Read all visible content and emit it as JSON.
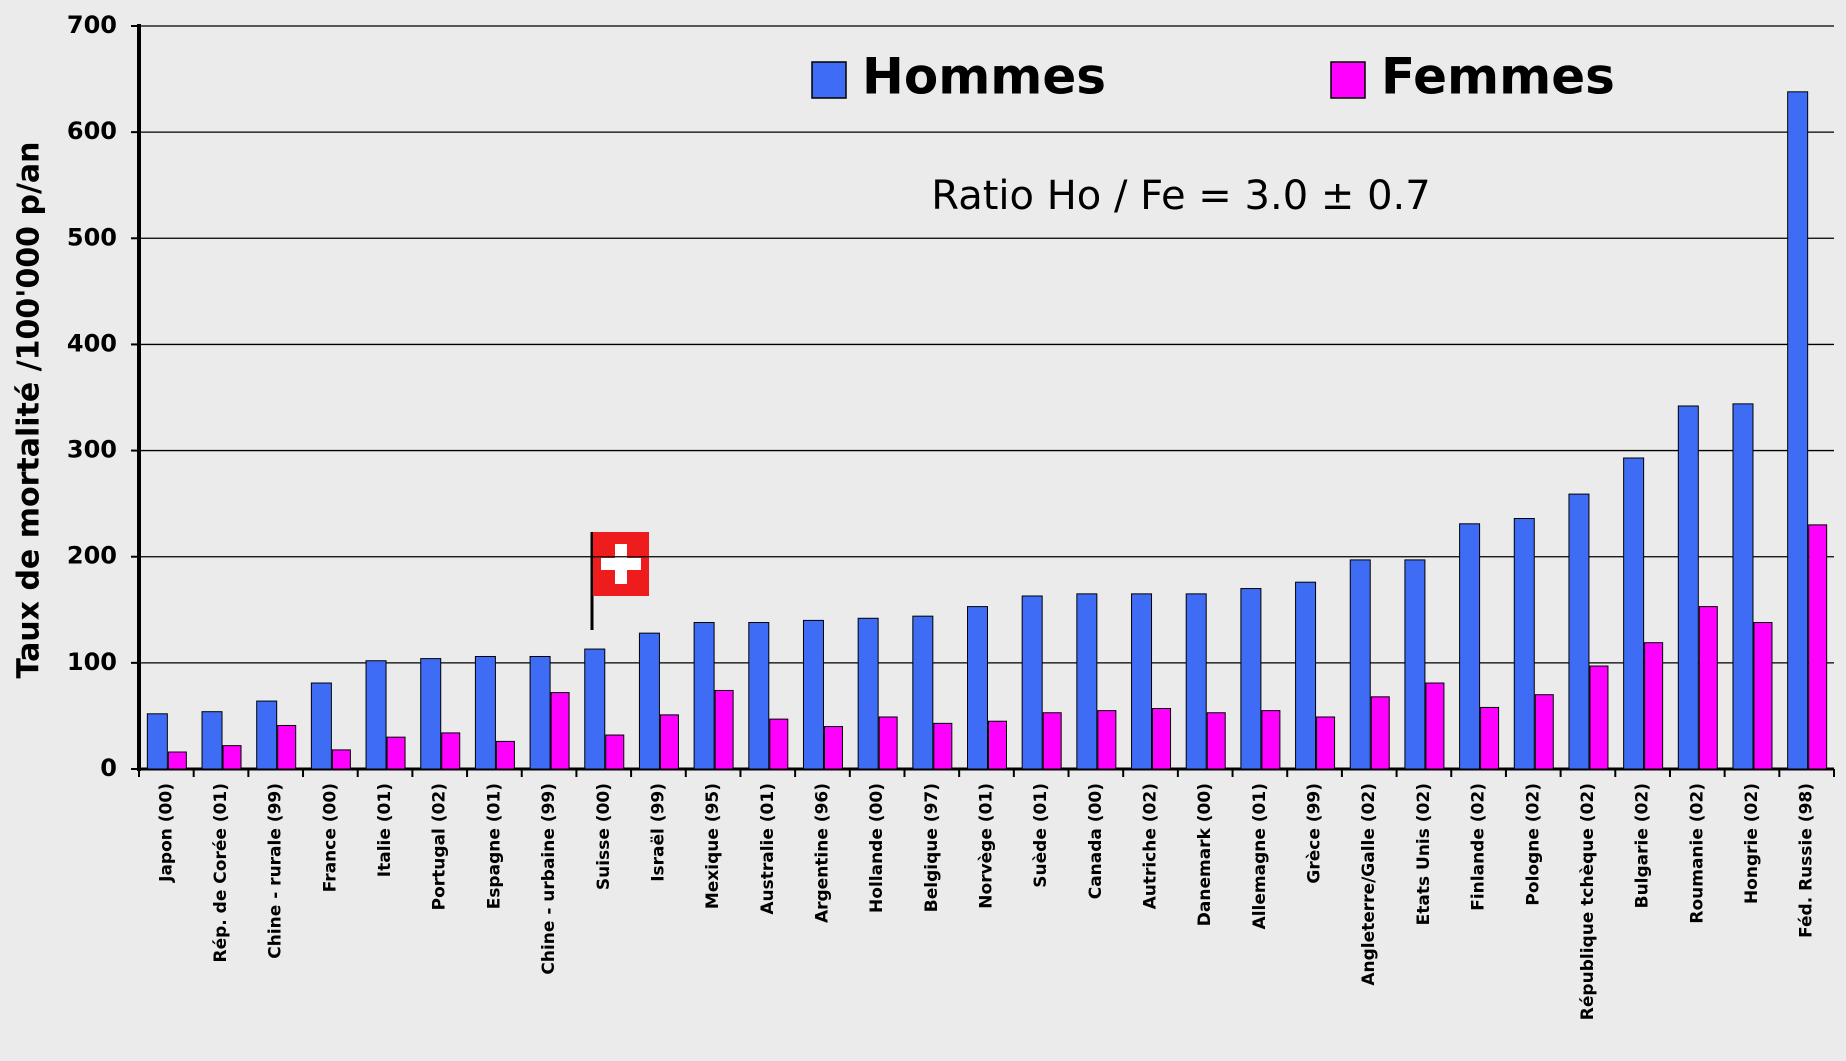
{
  "chart_data": {
    "type": "bar",
    "ylabel": "Taux de mortalité /100'000 p/an",
    "annotation": "Ratio Ho / Fe = 3.0 ± 0.7",
    "categories": [
      "Japon (00)",
      "Rép. de Corée (01)",
      "Chine - rurale (99)",
      "France (00)",
      "Italie (01)",
      "Portugal (02)",
      "Espagne (01)",
      "Chine - urbaine (99)",
      "Suisse (00)",
      "Israël (99)",
      "Mexique (95)",
      "Australie (01)",
      "Argentine (96)",
      "Hollande (00)",
      "Belgique (97)",
      "Norvège (01)",
      "Suède (01)",
      "Canada (00)",
      "Autriche (02)",
      "Danemark (00)",
      "Allemagne (01)",
      "Grèce (99)",
      "Angleterre/Galle (02)",
      "Etats Unis (02)",
      "Finlande (02)",
      "Pologne (02)",
      "République tchèque (02)",
      "Bulgarie (02)",
      "Roumanie (02)",
      "Hongrie (02)",
      "Féd. Russie (98)"
    ],
    "series": [
      {
        "name": "Hommes",
        "color": "#3f6cf5",
        "values": [
          52,
          54,
          64,
          81,
          102,
          104,
          106,
          106,
          113,
          128,
          138,
          138,
          140,
          142,
          144,
          153,
          163,
          165,
          165,
          165,
          170,
          176,
          197,
          197,
          231,
          236,
          259,
          293,
          342,
          344,
          638
        ]
      },
      {
        "name": "Femmes",
        "color": "#ff00ff",
        "values": [
          16,
          22,
          41,
          18,
          30,
          34,
          26,
          72,
          32,
          51,
          74,
          47,
          40,
          49,
          43,
          45,
          53,
          55,
          57,
          53,
          55,
          49,
          68,
          81,
          58,
          70,
          97,
          119,
          153,
          138,
          230
        ]
      }
    ],
    "ylim": [
      0,
      700
    ],
    "yticks": [
      0,
      100,
      200,
      300,
      400,
      500,
      600,
      700
    ],
    "grid": true,
    "legend": "top"
  }
}
